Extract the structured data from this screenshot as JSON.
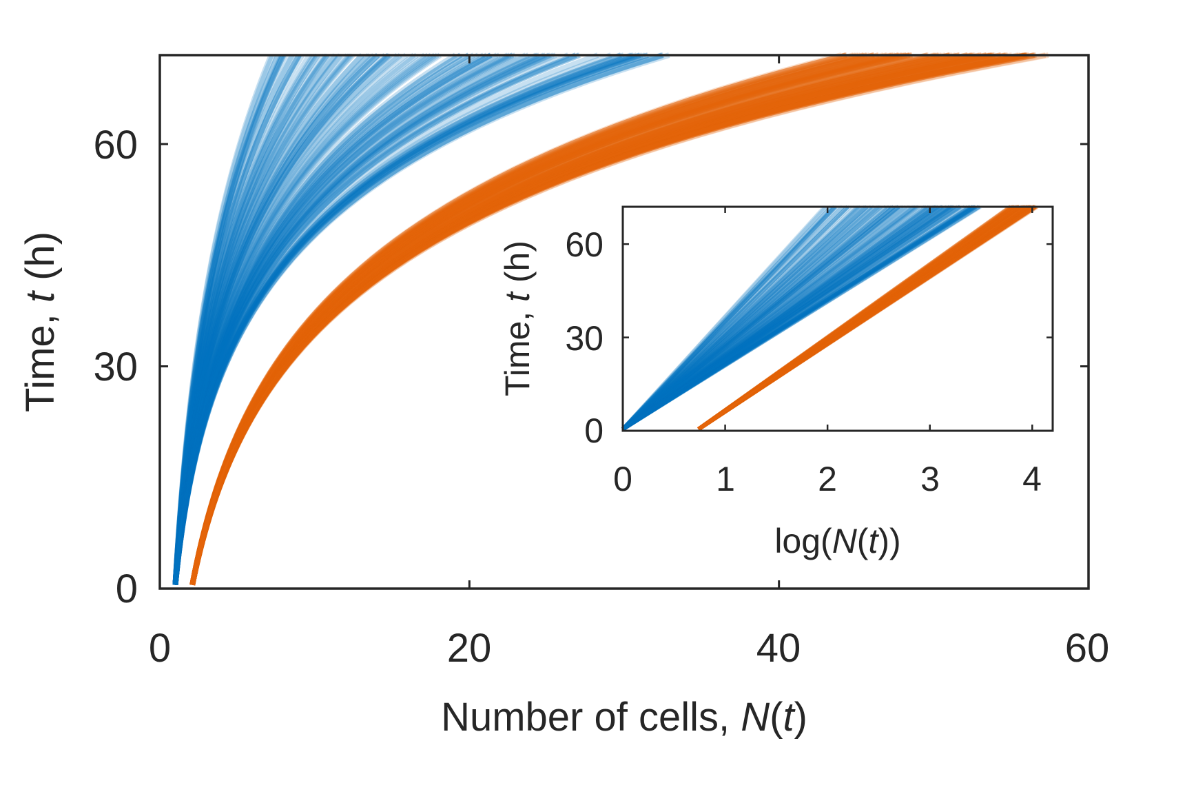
{
  "colors": {
    "blue": "#0072BD",
    "orange": "#E3650A",
    "axis": "#262626",
    "background": "#ffffff"
  },
  "chart_data": [
    {
      "name": "main",
      "type": "line",
      "title": "",
      "xlabel": {
        "main": "Number of cells, ",
        "var": "N",
        "open": "(",
        "arg": "t",
        "close": ")"
      },
      "ylabel": {
        "main": "Time, ",
        "var": "t",
        "unit": " (h)"
      },
      "xlim": [
        0,
        60
      ],
      "ylim": [
        0,
        72
      ],
      "xticks": [
        0,
        20,
        40,
        60
      ],
      "xtick_labels": [
        "0",
        "20",
        "40",
        "60"
      ],
      "yticks": [
        0,
        30,
        60
      ],
      "ytick_labels": [
        "0",
        "30",
        "60"
      ],
      "grid": false,
      "series": [
        {
          "name": "blue",
          "color": "#0072BD",
          "x_start": 1.0,
          "t_start": 0.5,
          "growth_rate_range_per_h": [
            0.027,
            0.053
          ],
          "n_trajectories": 110,
          "x_end_range": [
            7.0,
            33.0
          ]
        },
        {
          "name": "orange",
          "color": "#E3650A",
          "x_start": 2.1,
          "t_start": 0.5,
          "growth_rate_range_per_h": [
            0.044,
            0.047
          ],
          "n_trajectories": 110,
          "x_end_range": [
            44.0,
            57.5
          ]
        }
      ]
    },
    {
      "name": "inset",
      "type": "line",
      "title": "",
      "xlabel": {
        "prefix": "log(",
        "var": "N",
        "open": "(",
        "arg": "t",
        "close": "))"
      },
      "ylabel": {
        "main": "Time, ",
        "var": "t",
        "unit": " (h)"
      },
      "xlim": [
        0,
        4.2
      ],
      "ylim": [
        0,
        72
      ],
      "xticks": [
        0,
        1,
        2,
        3,
        4
      ],
      "xtick_labels": [
        "0",
        "1",
        "2",
        "3",
        "4"
      ],
      "yticks": [
        0,
        30,
        60
      ],
      "ytick_labels": [
        "0",
        "30",
        "60"
      ],
      "grid": false,
      "series": [
        {
          "name": "blue",
          "color": "#0072BD",
          "logx_start": 0.0,
          "logx_end_range": [
            1.9,
            3.5
          ]
        },
        {
          "name": "orange",
          "color": "#E3650A",
          "logx_start": 0.74,
          "logx_end_range": [
            3.78,
            4.05
          ]
        }
      ]
    }
  ]
}
